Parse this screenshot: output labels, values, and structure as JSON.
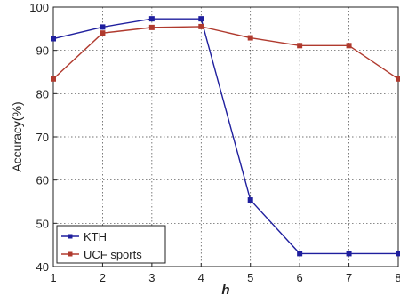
{
  "chart_data": {
    "type": "line",
    "title": "",
    "xlabel": "h",
    "ylabel": "Accuracy(%)",
    "x": [
      1,
      2,
      3,
      4,
      5,
      6,
      7,
      8
    ],
    "xlim": [
      1,
      8
    ],
    "ylim": [
      40,
      100
    ],
    "x_ticks": [
      "1",
      "2",
      "3",
      "4",
      "5",
      "6",
      "7",
      "8"
    ],
    "y_ticks": [
      "40",
      "50",
      "60",
      "70",
      "80",
      "90",
      "100"
    ],
    "grid": true,
    "legend_position": "bottom-left",
    "series": [
      {
        "name": "KTH",
        "color": "#1f1f9e",
        "marker": "square",
        "values": [
          92.7,
          95.4,
          97.3,
          97.3,
          55.4,
          43.0,
          43.0,
          43.0
        ]
      },
      {
        "name": "UCF sports",
        "color": "#b03a2e",
        "marker": "square",
        "values": [
          83.4,
          94.0,
          95.3,
          95.5,
          92.9,
          91.1,
          91.1,
          83.4
        ]
      }
    ]
  }
}
